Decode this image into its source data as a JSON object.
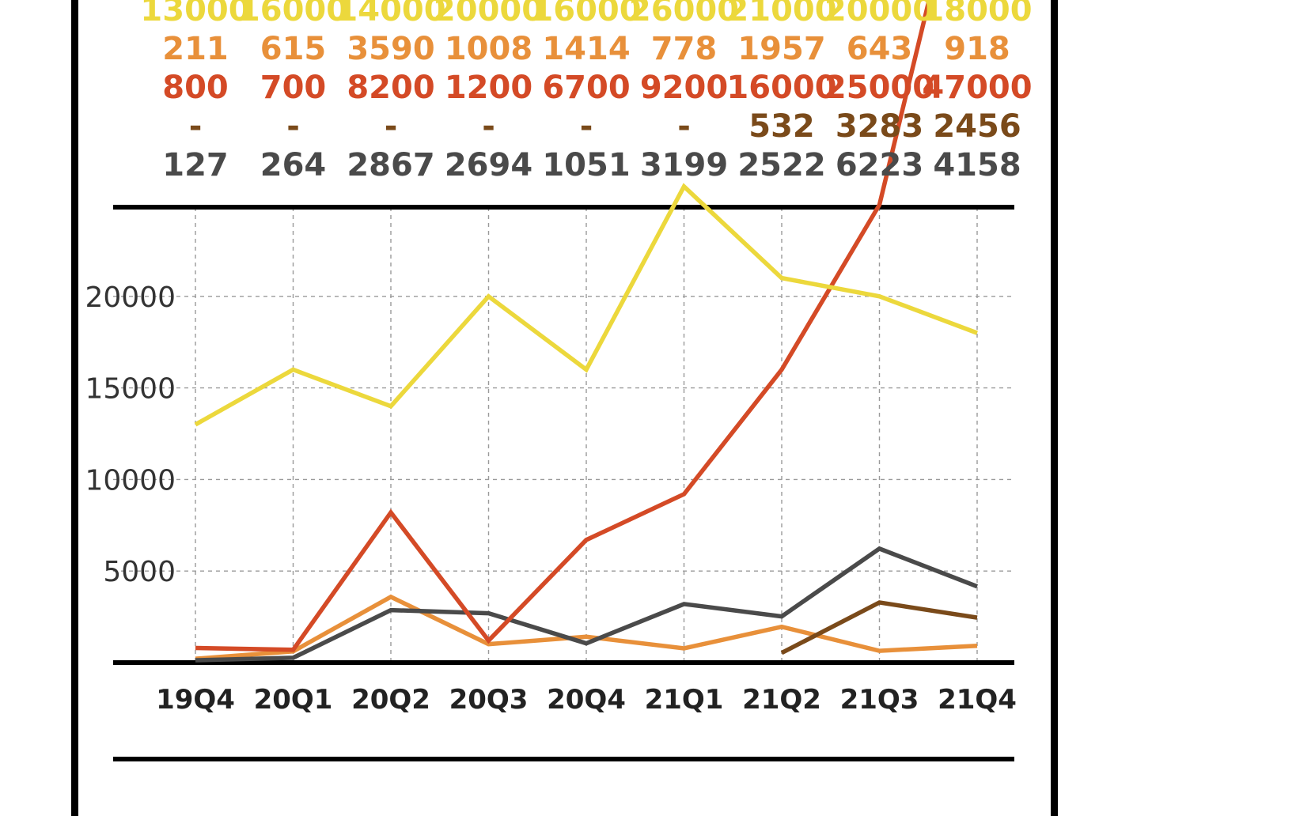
{
  "chart_data": {
    "type": "line",
    "title": "",
    "xlabel": "",
    "ylabel": "",
    "categories": [
      "19Q4",
      "20Q1",
      "20Q2",
      "20Q3",
      "20Q4",
      "21Q1",
      "21Q2",
      "21Q3",
      "21Q4"
    ],
    "ylim": [
      0,
      25000
    ],
    "yticks": [
      5000,
      10000,
      15000,
      20000
    ],
    "ytick_labels": [
      "5000",
      "10000",
      "15000",
      "20000"
    ],
    "grid": true,
    "legend": "none",
    "series": [
      {
        "color": "#ecd83c",
        "values": [
          13000,
          16000,
          14000,
          20000,
          16000,
          26000,
          21000,
          20000,
          18000
        ],
        "labels": [
          "13000",
          "16000",
          "14000",
          "20000",
          "16000",
          "26000",
          "21000",
          "20000",
          "18000"
        ]
      },
      {
        "color": "#e8903a",
        "values": [
          211,
          615,
          3590,
          1008,
          1414,
          778,
          1957,
          643,
          918
        ],
        "labels": [
          "211",
          "615",
          "3590",
          "1008",
          "1414",
          "778",
          "1957",
          "643",
          "918"
        ]
      },
      {
        "color": "#d44a26",
        "values": [
          800,
          700,
          8200,
          1200,
          6700,
          9200,
          16000,
          25000,
          47000
        ],
        "labels": [
          "800",
          "700",
          "8200",
          "1200",
          "6700",
          "9200",
          "16000",
          "25000",
          "47000"
        ]
      },
      {
        "color": "#7a4a1a",
        "values": [
          null,
          null,
          null,
          null,
          null,
          null,
          532,
          3283,
          2456
        ],
        "labels": [
          "-",
          "-",
          "-",
          "-",
          "-",
          "-",
          "532",
          "3283",
          "2456"
        ]
      },
      {
        "color": "#4a4a4a",
        "values": [
          127,
          264,
          2867,
          2694,
          1051,
          3199,
          2522,
          6223,
          4158
        ],
        "labels": [
          "127",
          "264",
          "2867",
          "2694",
          "1051",
          "3199",
          "2522",
          "6223",
          "4158"
        ]
      }
    ]
  }
}
